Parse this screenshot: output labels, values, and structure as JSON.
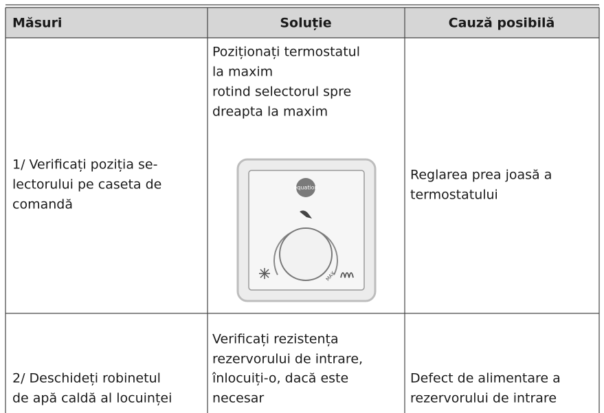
{
  "table": {
    "header": [
      "Măsuri",
      "Soluție",
      "Cauză posibilă"
    ],
    "rows": [
      [
        [
          "1/ Verificați poziția se-",
          "lectorului pe caseta de",
          "comandă"
        ],
        [
          "Poziționați termostatul",
          "la maxim",
          "rotind selectorul spre",
          "dreapta la maxim"
        ],
        [
          "Reglarea prea joasă a",
          "termostatului"
        ]
      ],
      [
        [
          "2/ Deschideți robinetul",
          "de apă caldă al locuinței"
        ],
        [
          "Verificați rezistența",
          "rezervorului de intrare,",
          "înlocuiți-o, dacă este",
          "necesar"
        ],
        [
          "Defect de alimentare a",
          "rezervorului de intrare"
        ]
      ]
    ]
  },
  "image": {
    "logo": "equation",
    "dial_label": "MAX"
  }
}
